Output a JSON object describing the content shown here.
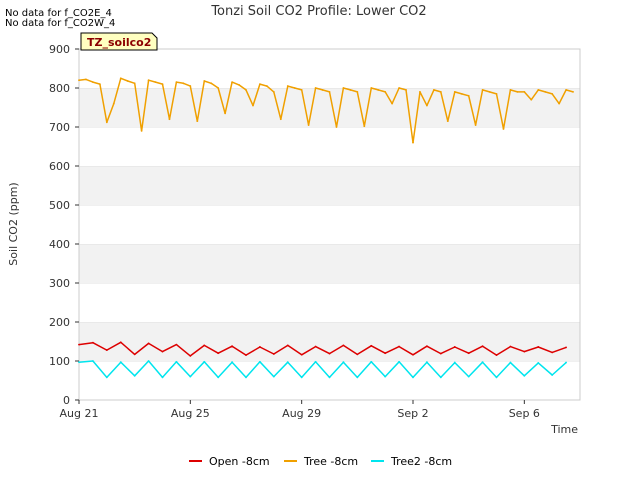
{
  "messages": [
    "No data for f_CO2E_4",
    "No data for f_CO2W_4"
  ],
  "chart_data": {
    "type": "line",
    "title": "Tonzi Soil CO2 Profile: Lower CO2",
    "xlabel": "Time",
    "ylabel": "Soil CO2 (ppm)",
    "ylim": [
      0,
      900
    ],
    "yticks": [
      0,
      100,
      200,
      300,
      400,
      500,
      600,
      700,
      800,
      900
    ],
    "xlim": [
      "2023-08-21",
      "2023-09-08"
    ],
    "xticks": [
      {
        "date": "2023-08-21",
        "label": "Aug 21"
      },
      {
        "date": "2023-08-25",
        "label": "Aug 25"
      },
      {
        "date": "2023-08-29",
        "label": "Aug 29"
      },
      {
        "date": "2023-09-02",
        "label": "Sep 2"
      },
      {
        "date": "2023-09-06",
        "label": "Sep 6"
      }
    ],
    "grid": "alternating horizontal bands",
    "legend_position": "bottom",
    "site_tag": "TZ_soilco2",
    "series": [
      {
        "name": "Open -8cm",
        "color": "#dd0000",
        "x": [
          "2023-08-21",
          "2023-08-21T12:00",
          "2023-08-22",
          "2023-08-22T12:00",
          "2023-08-23",
          "2023-08-23T12:00",
          "2023-08-24",
          "2023-08-24T12:00",
          "2023-08-25",
          "2023-08-25T12:00",
          "2023-08-26",
          "2023-08-26T12:00",
          "2023-08-27",
          "2023-08-27T12:00",
          "2023-08-28",
          "2023-08-28T12:00",
          "2023-08-29",
          "2023-08-29T12:00",
          "2023-08-30",
          "2023-08-30T12:00",
          "2023-08-31",
          "2023-08-31T12:00",
          "2023-09-01",
          "2023-09-01T12:00",
          "2023-09-02",
          "2023-09-02T12:00",
          "2023-09-03",
          "2023-09-03T12:00",
          "2023-09-04",
          "2023-09-04T12:00",
          "2023-09-05",
          "2023-09-05T12:00",
          "2023-09-06",
          "2023-09-06T12:00",
          "2023-09-07",
          "2023-09-07T12:00"
        ],
        "values": [
          142,
          147,
          128,
          148,
          117,
          145,
          124,
          142,
          113,
          140,
          120,
          138,
          115,
          136,
          118,
          140,
          116,
          137,
          119,
          140,
          117,
          139,
          120,
          137,
          116,
          138,
          119,
          136,
          120,
          138,
          115,
          137,
          124,
          136,
          122,
          135
        ]
      },
      {
        "name": "Tree -8cm",
        "color": "#f0a000",
        "x": [
          "2023-08-21",
          "2023-08-21T06:00",
          "2023-08-21T12:00",
          "2023-08-21T18:00",
          "2023-08-22",
          "2023-08-22T06:00",
          "2023-08-22T12:00",
          "2023-08-22T18:00",
          "2023-08-23",
          "2023-08-23T06:00",
          "2023-08-23T12:00",
          "2023-08-23T18:00",
          "2023-08-24",
          "2023-08-24T06:00",
          "2023-08-24T12:00",
          "2023-08-24T18:00",
          "2023-08-25",
          "2023-08-25T06:00",
          "2023-08-25T12:00",
          "2023-08-25T18:00",
          "2023-08-26",
          "2023-08-26T06:00",
          "2023-08-26T12:00",
          "2023-08-26T18:00",
          "2023-08-27",
          "2023-08-27T06:00",
          "2023-08-27T12:00",
          "2023-08-27T18:00",
          "2023-08-28",
          "2023-08-28T06:00",
          "2023-08-28T12:00",
          "2023-08-28T18:00",
          "2023-08-29",
          "2023-08-29T06:00",
          "2023-08-29T12:00",
          "2023-08-29T18:00",
          "2023-08-30",
          "2023-08-30T06:00",
          "2023-08-30T12:00",
          "2023-08-30T18:00",
          "2023-08-31",
          "2023-08-31T06:00",
          "2023-08-31T12:00",
          "2023-08-31T18:00",
          "2023-09-01",
          "2023-09-01T06:00",
          "2023-09-01T12:00",
          "2023-09-01T18:00",
          "2023-09-02",
          "2023-09-02T06:00",
          "2023-09-02T12:00",
          "2023-09-02T18:00",
          "2023-09-03",
          "2023-09-03T06:00",
          "2023-09-03T12:00",
          "2023-09-03T18:00",
          "2023-09-04",
          "2023-09-04T06:00",
          "2023-09-04T12:00",
          "2023-09-04T18:00",
          "2023-09-05",
          "2023-09-05T06:00",
          "2023-09-05T12:00",
          "2023-09-05T18:00",
          "2023-09-06",
          "2023-09-06T06:00",
          "2023-09-06T12:00",
          "2023-09-06T18:00",
          "2023-09-07",
          "2023-09-07T06:00",
          "2023-09-07T12:00",
          "2023-09-07T18:00"
        ],
        "values": [
          820,
          822,
          815,
          810,
          712,
          760,
          825,
          818,
          812,
          690,
          820,
          815,
          810,
          720,
          815,
          812,
          805,
          715,
          818,
          812,
          800,
          735,
          815,
          808,
          795,
          755,
          810,
          805,
          790,
          720,
          805,
          800,
          795,
          705,
          800,
          795,
          790,
          700,
          800,
          795,
          790,
          702,
          800,
          795,
          790,
          760,
          800,
          795,
          660,
          790,
          755,
          795,
          790,
          715,
          790,
          785,
          780,
          705,
          795,
          790,
          785,
          695,
          795,
          790,
          790,
          770,
          795,
          790,
          785,
          760,
          795,
          790
        ]
      },
      {
        "name": "Tree2 -8cm",
        "color": "#00e5ee",
        "x": [
          "2023-08-21",
          "2023-08-21T12:00",
          "2023-08-22",
          "2023-08-22T12:00",
          "2023-08-23",
          "2023-08-23T12:00",
          "2023-08-24",
          "2023-08-24T12:00",
          "2023-08-25",
          "2023-08-25T12:00",
          "2023-08-26",
          "2023-08-26T12:00",
          "2023-08-27",
          "2023-08-27T12:00",
          "2023-08-28",
          "2023-08-28T12:00",
          "2023-08-29",
          "2023-08-29T12:00",
          "2023-08-30",
          "2023-08-30T12:00",
          "2023-08-31",
          "2023-08-31T12:00",
          "2023-09-01",
          "2023-09-01T12:00",
          "2023-09-02",
          "2023-09-02T12:00",
          "2023-09-03",
          "2023-09-03T12:00",
          "2023-09-04",
          "2023-09-04T12:00",
          "2023-09-05",
          "2023-09-05T12:00",
          "2023-09-06",
          "2023-09-06T12:00",
          "2023-09-07",
          "2023-09-07T12:00"
        ],
        "values": [
          97,
          100,
          58,
          97,
          62,
          100,
          58,
          98,
          60,
          98,
          58,
          97,
          58,
          98,
          60,
          97,
          58,
          98,
          58,
          97,
          58,
          98,
          60,
          98,
          58,
          97,
          58,
          96,
          60,
          97,
          58,
          96,
          62,
          95,
          64,
          96
        ]
      }
    ]
  }
}
